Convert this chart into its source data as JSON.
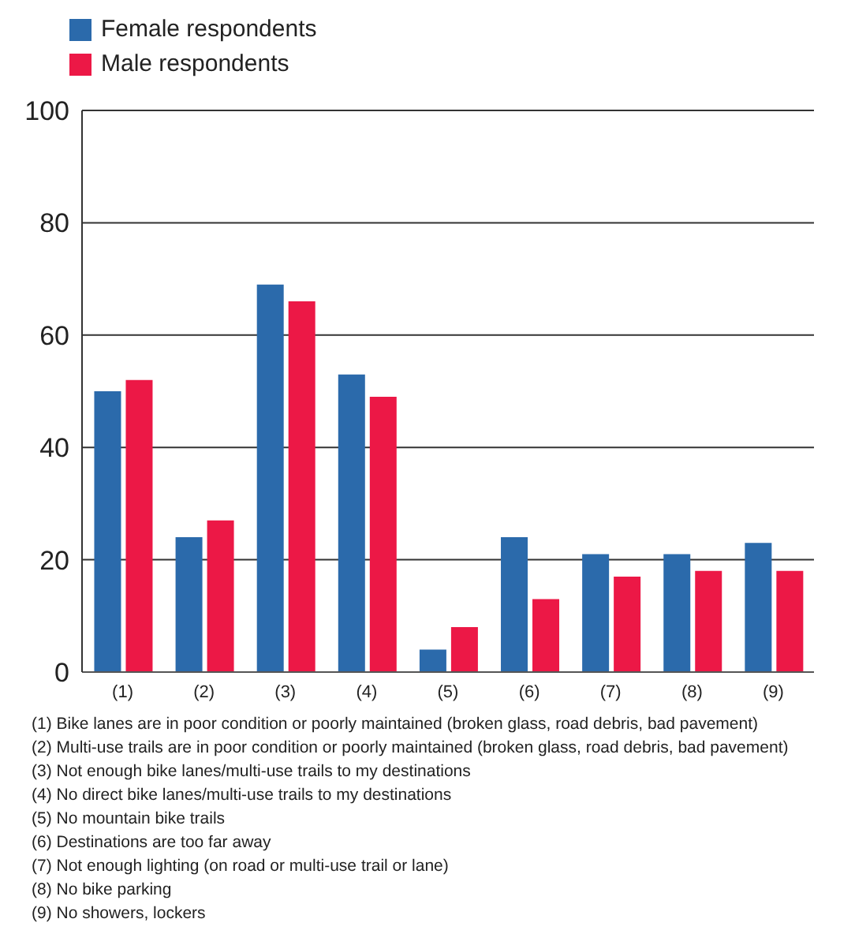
{
  "chart_data": {
    "type": "bar",
    "categories": [
      "(1)",
      "(2)",
      "(3)",
      "(4)",
      "(5)",
      "(6)",
      "(7)",
      "(8)",
      "(9)"
    ],
    "series": [
      {
        "name": "Female respondents",
        "color": "#2b6aab",
        "values": [
          50,
          24,
          69,
          53,
          4,
          24,
          21,
          21,
          23
        ]
      },
      {
        "name": "Male respondents",
        "color": "#ec1846",
        "values": [
          52,
          27,
          66,
          49,
          8,
          13,
          17,
          18,
          18
        ]
      }
    ],
    "ylim": [
      0,
      100
    ],
    "yticks": [
      0,
      20,
      40,
      60,
      80,
      100
    ],
    "grid": "y",
    "legend": "top left",
    "annotations": [
      "(1) Bike lanes are in poor condition or poorly maintained (broken glass, road debris, bad pavement)",
      "(2) Multi-use trails are in poor condition or poorly maintained (broken glass, road debris, bad pavement)",
      "(3) Not enough bike lanes/multi-use trails to my destinations",
      "(4) No direct bike lanes/multi-use trails to my destinations",
      "(5) No mountain bike trails",
      "(6) Destinations are too far away",
      "(7) Not enough lighting (on road or multi-use trail or lane)",
      "(8) No bike parking",
      "(9) No showers, lockers"
    ]
  }
}
